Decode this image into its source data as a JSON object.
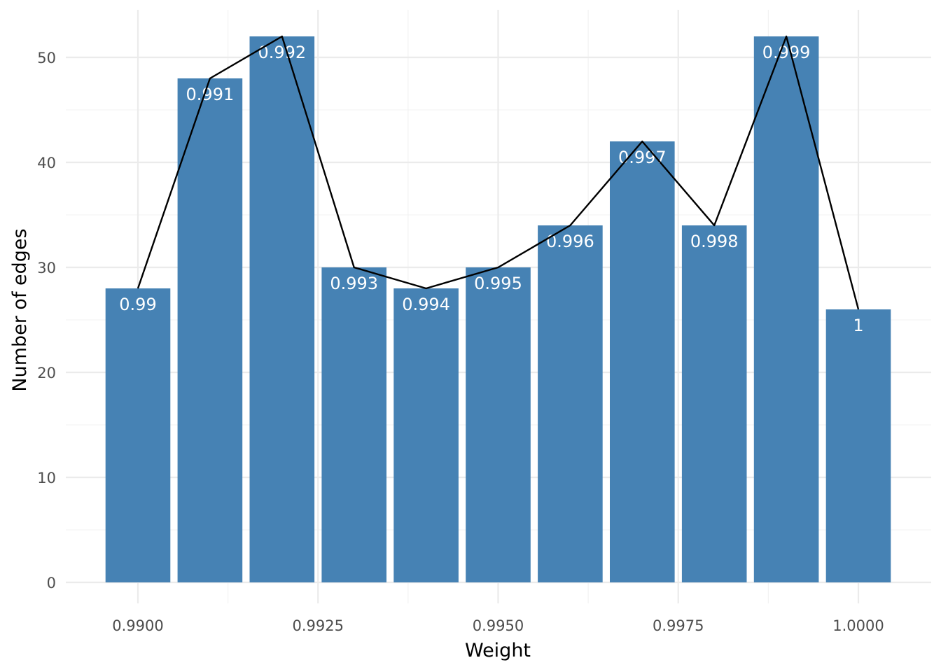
{
  "chart_data": {
    "type": "bar",
    "xlabel": "Weight",
    "ylabel": "Number of edges",
    "xlim": [
      0.9895,
      1.0005
    ],
    "ylim": [
      0,
      54
    ],
    "x_ticks": [
      0.99,
      0.9925,
      0.995,
      0.9975,
      1.0
    ],
    "x_tick_labels": [
      "0.9900",
      "0.9925",
      "0.9950",
      "0.9975",
      "1.0000"
    ],
    "y_ticks": [
      0,
      10,
      20,
      30,
      40,
      50
    ],
    "y_tick_labels": [
      "0",
      "10",
      "20",
      "30",
      "40",
      "50"
    ],
    "grid": true,
    "bar_color": "#4682b4",
    "line_color": "#000000",
    "bars": [
      {
        "x": 0.99,
        "value": 28,
        "label": "0.99"
      },
      {
        "x": 0.991,
        "value": 48,
        "label": "0.991"
      },
      {
        "x": 0.992,
        "value": 52,
        "label": "0.992"
      },
      {
        "x": 0.993,
        "value": 30,
        "label": "0.993"
      },
      {
        "x": 0.994,
        "value": 28,
        "label": "0.994"
      },
      {
        "x": 0.995,
        "value": 30,
        "label": "0.995"
      },
      {
        "x": 0.996,
        "value": 34,
        "label": "0.996"
      },
      {
        "x": 0.997,
        "value": 42,
        "label": "0.997"
      },
      {
        "x": 0.998,
        "value": 34,
        "label": "0.998"
      },
      {
        "x": 0.999,
        "value": 52,
        "label": "0.999"
      },
      {
        "x": 1.0,
        "value": 26,
        "label": "1"
      }
    ]
  }
}
